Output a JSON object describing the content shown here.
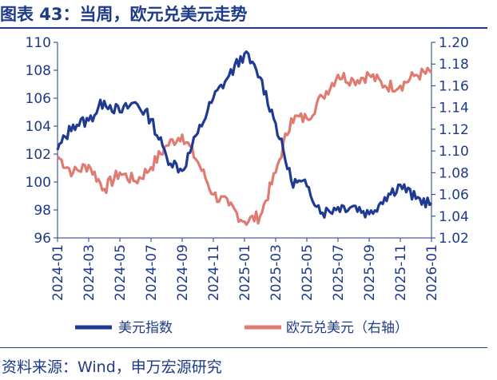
{
  "header": {
    "title": "图表 43：当周，欧元兑美元走势"
  },
  "footer": {
    "source": "资料来源：Wind，申万宏源研究"
  },
  "chart_data": {
    "type": "line",
    "title": "图表 43：当周，欧元兑美元走势",
    "x_tick_labels": [
      "2024-01",
      "2024-03",
      "2024-05",
      "2024-07",
      "2024-09",
      "2024-11",
      "2025-01",
      "2025-03",
      "2025-05",
      "2025-07",
      "2025-09",
      "2025-11",
      "2026-01"
    ],
    "y_left": {
      "ylim": [
        96,
        110
      ],
      "ticks": [
        "96",
        "98",
        "100",
        "102",
        "104",
        "106",
        "108",
        "110"
      ]
    },
    "y_right": {
      "ylim": [
        1.02,
        1.2
      ],
      "ticks": [
        "1.02",
        "1.04",
        "1.06",
        "1.08",
        "1.10",
        "1.12",
        "1.14",
        "1.16",
        "1.18",
        "1.20"
      ]
    },
    "legend_position": "bottom",
    "grid": false,
    "series": [
      {
        "name": "美元指数",
        "axis": "left",
        "color": "#1f3a93",
        "x": [
          "2024-01",
          "2024-02",
          "2024-03",
          "2024-04",
          "2024-05",
          "2024-06",
          "2024-07",
          "2024-08",
          "2024-09",
          "2024-10",
          "2024-11",
          "2024-12",
          "2025-01",
          "2025-02",
          "2025-03",
          "2025-04",
          "2025-05",
          "2025-06",
          "2025-07",
          "2025-08",
          "2025-09",
          "2025-10",
          "2025-11",
          "2025-12",
          "2026-01"
        ],
        "values": [
          102.3,
          104.1,
          104.4,
          105.8,
          105.0,
          105.7,
          104.5,
          101.8,
          100.8,
          103.5,
          106.0,
          107.6,
          109.2,
          107.5,
          104.2,
          100.1,
          99.7,
          97.8,
          98.2,
          98.3,
          97.7,
          98.9,
          99.8,
          98.8,
          98.5
        ]
      },
      {
        "name": "欧元兑美元（右轴）",
        "axis": "right",
        "color": "#e07b72",
        "x": [
          "2024-01",
          "2024-02",
          "2024-03",
          "2024-04",
          "2024-05",
          "2024-06",
          "2024-07",
          "2024-08",
          "2024-09",
          "2024-10",
          "2024-11",
          "2024-12",
          "2025-01",
          "2025-02",
          "2025-03",
          "2025-04",
          "2025-05",
          "2025-06",
          "2025-07",
          "2025-08",
          "2025-09",
          "2025-10",
          "2025-11",
          "2025-12",
          "2026-01"
        ],
        "values": [
          1.095,
          1.08,
          1.087,
          1.065,
          1.08,
          1.072,
          1.085,
          1.105,
          1.115,
          1.09,
          1.06,
          1.05,
          1.035,
          1.04,
          1.08,
          1.13,
          1.13,
          1.15,
          1.17,
          1.165,
          1.17,
          1.16,
          1.16,
          1.17,
          1.172
        ]
      }
    ]
  }
}
